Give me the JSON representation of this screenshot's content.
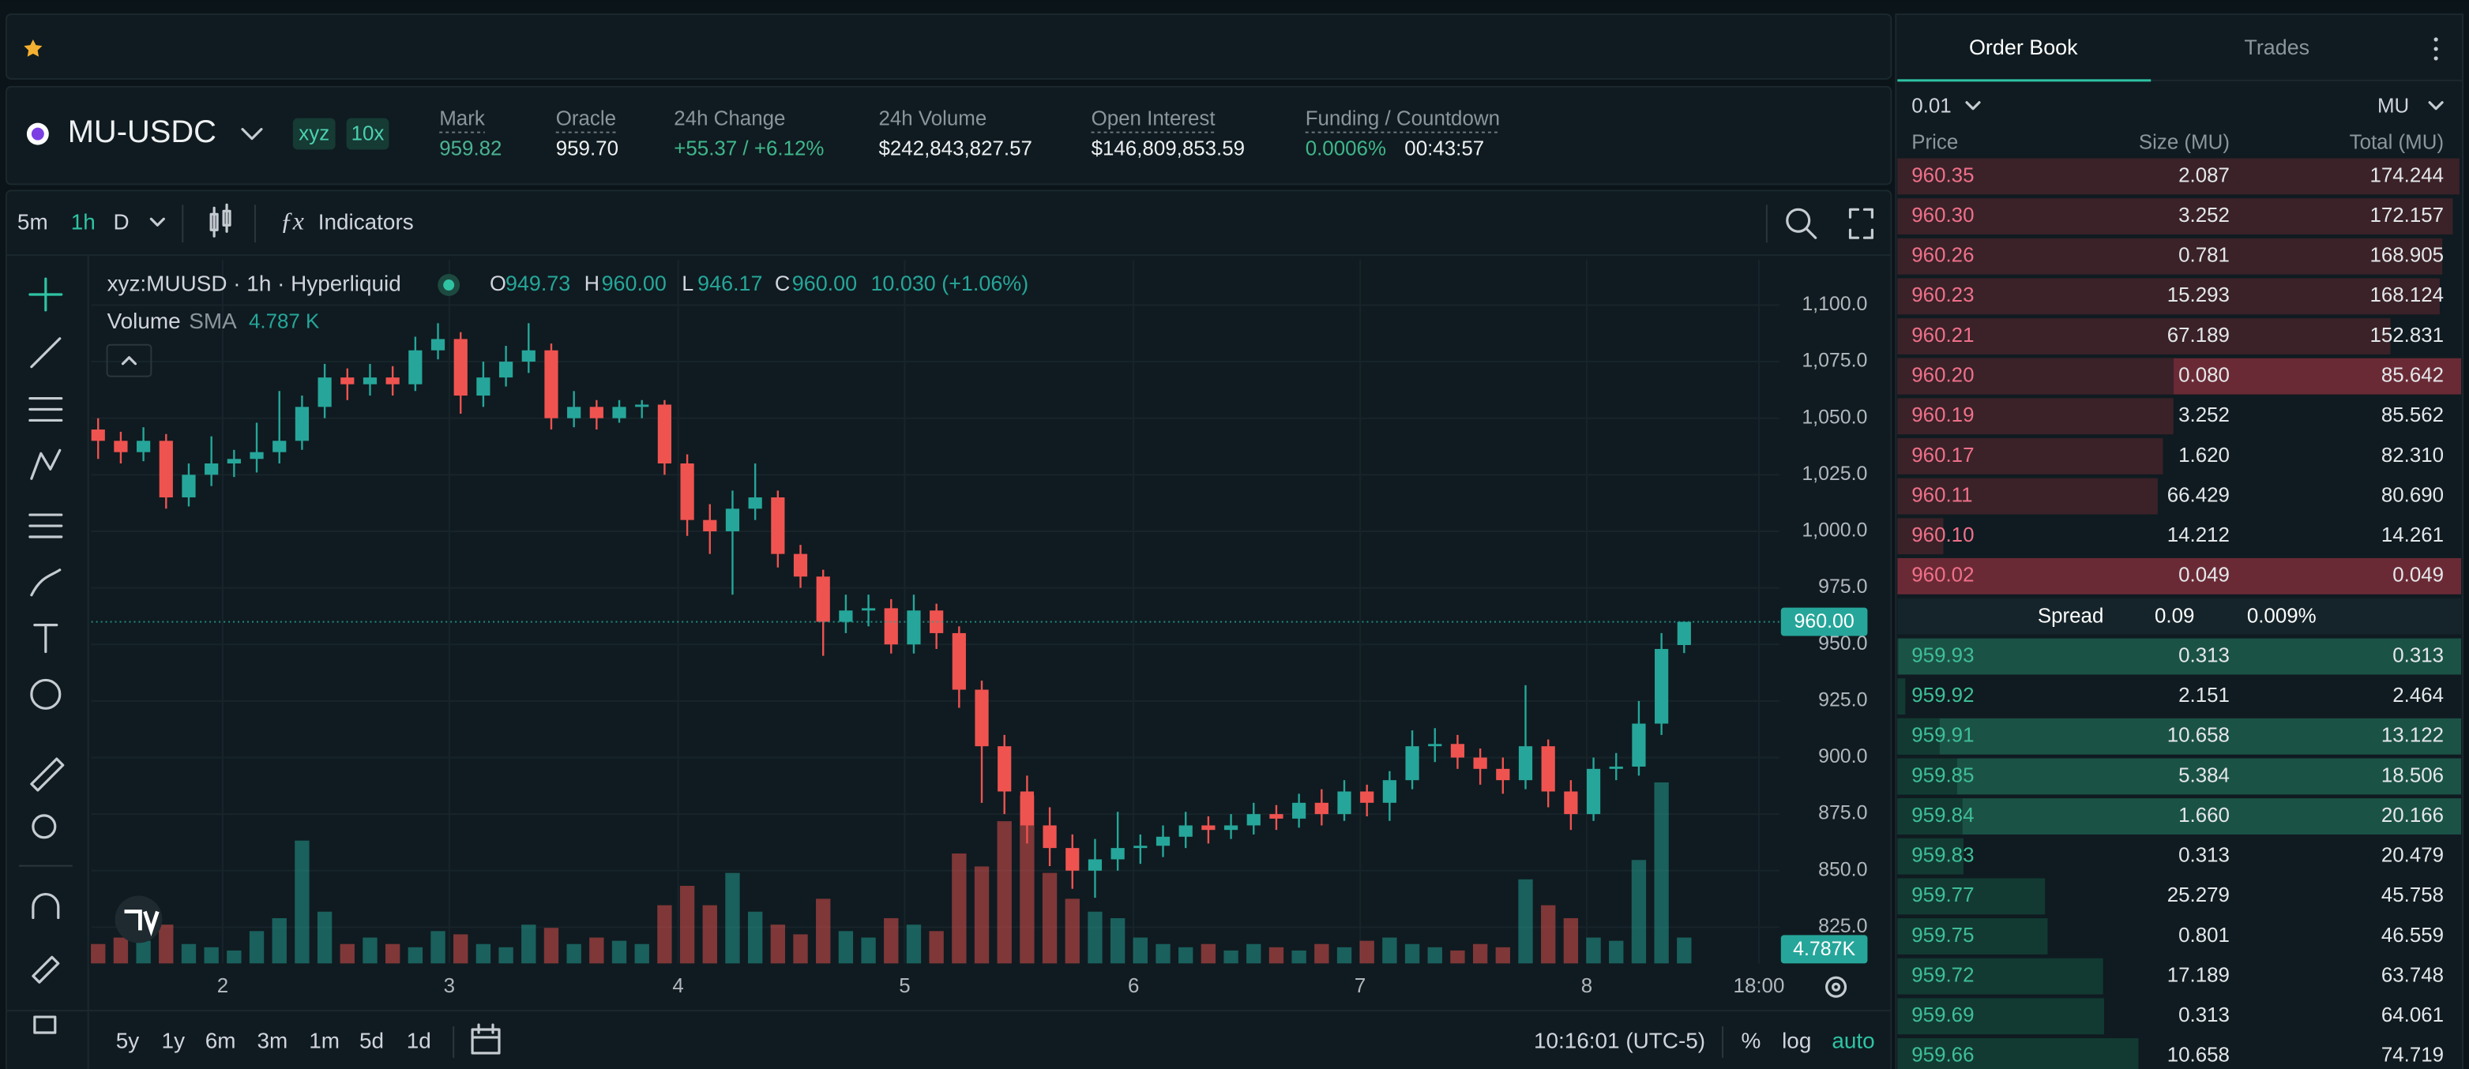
{
  "market": {
    "symbol": "MU-USDC",
    "tags": [
      "xyz",
      "10x"
    ],
    "stats": [
      {
        "label": "Mark",
        "value": "959.82"
      },
      {
        "label": "Oracle",
        "value": "959.70"
      },
      {
        "label": "24h Change",
        "value": "+55.37 / +6.12%"
      },
      {
        "label": "24h Volume",
        "value": "$242,843,827.57"
      },
      {
        "label": "Open Interest",
        "value": "$146,809,853.59"
      },
      {
        "label": "Funding / Countdown",
        "value": "0.0006%",
        "countdown": "00:43:57"
      }
    ]
  },
  "chart_toolbar": {
    "timeframes": [
      "5m",
      "1h",
      "D"
    ],
    "active_timeframe": 1,
    "indicators": "Indicators"
  },
  "chart_data": {
    "type": "candlestick",
    "title": "xyz:MUUSD · 1h · Hyperliquid",
    "legend": [
      {
        "label": "O",
        "value": "949.73"
      },
      {
        "label": "H",
        "value": "960.00"
      },
      {
        "label": "L",
        "value": "946.17"
      },
      {
        "label": "C",
        "value": "960.00"
      }
    ],
    "change": "10.030 (+1.06%)",
    "volume_label": "Volume",
    "volume_sma_label": "SMA",
    "volume_sma": "4.787 K",
    "volume_tag": "4.787K",
    "up_color": "#26a69a",
    "down_color": "#ef5350",
    "open": [
      1045,
      1040,
      1035,
      1040,
      1015,
      1025,
      1030,
      1032,
      1035,
      1040,
      1055,
      1068,
      1065,
      1068,
      1065,
      1080,
      1085,
      1060,
      1068,
      1075,
      1080,
      1050,
      1055,
      1050,
      1055,
      1056,
      1030,
      1005,
      1000,
      1010,
      1015,
      990,
      980,
      960,
      965,
      966,
      950,
      965,
      955,
      930,
      905,
      885,
      870,
      860,
      850,
      855,
      860,
      861,
      865,
      870,
      868,
      870,
      875,
      873,
      880,
      875,
      885,
      880,
      890,
      905,
      906,
      900,
      895,
      890,
      905,
      885,
      875,
      895,
      896,
      915,
      949.73
    ],
    "high": [
      1050,
      1044,
      1046,
      1043,
      1030,
      1042,
      1036,
      1048,
      1062,
      1060,
      1074,
      1072,
      1074,
      1073,
      1086,
      1092,
      1088,
      1075,
      1082,
      1092,
      1083,
      1062,
      1058,
      1058,
      1058,
      1058,
      1034,
      1012,
      1018,
      1030,
      1018,
      994,
      983,
      972,
      972,
      970,
      972,
      968,
      958,
      934,
      910,
      892,
      878,
      866,
      864,
      876,
      866,
      870,
      876,
      874,
      875,
      880,
      879,
      884,
      886,
      890,
      888,
      894,
      912,
      913,
      910,
      904,
      900,
      932,
      908,
      890,
      900,
      902,
      925,
      955,
      960
    ],
    "low": [
      1032,
      1030,
      1031,
      1010,
      1011,
      1020,
      1024,
      1026,
      1030,
      1036,
      1050,
      1058,
      1060,
      1060,
      1062,
      1076,
      1052,
      1055,
      1064,
      1070,
      1045,
      1046,
      1045,
      1048,
      1050,
      1025,
      998,
      990,
      972,
      1005,
      984,
      975,
      945,
      955,
      958,
      946,
      946,
      948,
      922,
      880,
      875,
      862,
      852,
      842,
      838,
      850,
      853,
      856,
      860,
      862,
      864,
      866,
      868,
      869,
      870,
      872,
      874,
      872,
      886,
      898,
      895,
      888,
      884,
      886,
      878,
      868,
      872,
      890,
      892,
      910,
      946.17
    ],
    "close": [
      1040,
      1035,
      1040,
      1015,
      1025,
      1030,
      1032,
      1035,
      1040,
      1055,
      1068,
      1065,
      1068,
      1065,
      1080,
      1085,
      1060,
      1068,
      1075,
      1080,
      1050,
      1055,
      1050,
      1055,
      1056,
      1030,
      1005,
      1000,
      1010,
      1015,
      990,
      980,
      960,
      965,
      966,
      950,
      965,
      955,
      930,
      905,
      885,
      870,
      860,
      850,
      855,
      860,
      861,
      865,
      870,
      868,
      870,
      875,
      873,
      880,
      875,
      885,
      880,
      890,
      905,
      906,
      900,
      895,
      890,
      905,
      885,
      875,
      895,
      896,
      915,
      948,
      960
    ],
    "volume": [
      3000,
      4000,
      3500,
      6000,
      3000,
      2500,
      2000,
      5000,
      7000,
      19000,
      8000,
      3000,
      4000,
      3000,
      2500,
      5000,
      4500,
      3000,
      2500,
      6000,
      5500,
      3000,
      4000,
      3500,
      3000,
      9000,
      12000,
      9000,
      14000,
      8000,
      6000,
      4500,
      10000,
      5000,
      4000,
      7000,
      6000,
      5000,
      17000,
      15000,
      22000,
      26000,
      14000,
      10000,
      8000,
      7000,
      4000,
      3000,
      2500,
      3000,
      2000,
      3000,
      2500,
      2000,
      3000,
      2500,
      3500,
      4000,
      3000,
      2500,
      2000,
      3000,
      2500,
      13000,
      9000,
      7000,
      4000,
      3500,
      16000,
      28000,
      4000
    ],
    "ylim": [
      809,
      1120
    ],
    "yticks": [
      {
        "value": 825,
        "label": "825.0"
      },
      {
        "value": 850,
        "label": "850.0"
      },
      {
        "value": 875,
        "label": "875.0"
      },
      {
        "value": 900,
        "label": "900.0"
      },
      {
        "value": 925,
        "label": "925.0"
      },
      {
        "value": 950,
        "label": "950.0"
      },
      {
        "value": 975,
        "label": "975.0"
      },
      {
        "value": 1000,
        "label": "1,000.0"
      },
      {
        "value": 1025,
        "label": "1,025.0"
      },
      {
        "value": 1050,
        "label": "1,050.0"
      },
      {
        "value": 1075,
        "label": "1,075.0"
      },
      {
        "value": 1100,
        "label": "1,100.0"
      }
    ],
    "xlim": [
      -0.3,
      74.2
    ],
    "xticks": [
      {
        "value": 5.5,
        "label": "2"
      },
      {
        "value": 15.5,
        "label": "3"
      },
      {
        "value": 25.6,
        "label": "4"
      },
      {
        "value": 35.6,
        "label": "5"
      },
      {
        "value": 45.7,
        "label": "6"
      },
      {
        "value": 55.7,
        "label": "7"
      },
      {
        "value": 65.7,
        "label": "8"
      },
      {
        "value": 73.3,
        "label": "18:00"
      }
    ],
    "grid": true
  },
  "chart_footer": {
    "ranges": [
      "5y",
      "1y",
      "6m",
      "3m",
      "1m",
      "5d",
      "1d"
    ],
    "time": "10:16:01 (UTC-5)",
    "percent": "%",
    "log": "log",
    "auto": "auto"
  },
  "order_book": {
    "tabs": [
      "Order Book",
      "Trades"
    ],
    "tick_size": "0.01",
    "unit": "MU",
    "columns": [
      "Price",
      "Size (MU)",
      "Total (MU)"
    ],
    "asks": [
      [
        "960.35",
        "2.087",
        "174.244"
      ],
      [
        "960.30",
        "3.252",
        "172.157"
      ],
      [
        "960.26",
        "0.781",
        "168.905"
      ],
      [
        "960.23",
        "15.293",
        "168.124"
      ],
      [
        "960.21",
        "67.189",
        "152.831"
      ],
      [
        "960.20",
        "0.080",
        "85.642"
      ],
      [
        "960.19",
        "3.252",
        "85.562"
      ],
      [
        "960.17",
        "1.620",
        "82.310"
      ],
      [
        "960.11",
        "66.429",
        "80.690"
      ],
      [
        "960.10",
        "14.212",
        "14.261"
      ],
      [
        "960.02",
        "0.049",
        "0.049"
      ]
    ],
    "spread": {
      "label": "Spread",
      "value": "0.09",
      "percent": "0.009%"
    },
    "bids": [
      [
        "959.93",
        "0.313",
        "0.313"
      ],
      [
        "959.92",
        "2.151",
        "2.464"
      ],
      [
        "959.91",
        "10.658",
        "13.122"
      ],
      [
        "959.85",
        "5.384",
        "18.506"
      ],
      [
        "959.84",
        "1.660",
        "20.166"
      ],
      [
        "959.83",
        "0.313",
        "20.479"
      ],
      [
        "959.77",
        "25.279",
        "45.758"
      ],
      [
        "959.75",
        "0.801",
        "46.559"
      ],
      [
        "959.72",
        "17.189",
        "63.748"
      ],
      [
        "959.69",
        "0.313",
        "64.061"
      ],
      [
        "959.66",
        "10.658",
        "74.719"
      ]
    ],
    "flash_asks": [
      5,
      10
    ],
    "flash_bids": [
      0,
      2,
      3,
      4
    ]
  }
}
